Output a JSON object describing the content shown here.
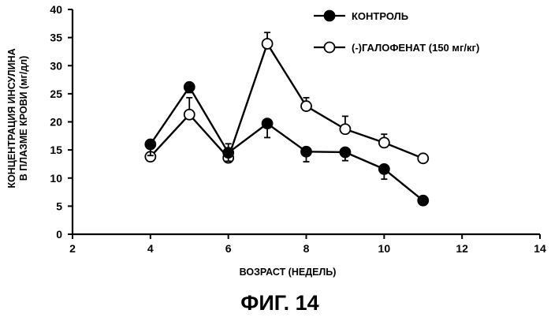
{
  "chart_data": {
    "type": "line",
    "xlabel": "ВОЗРАСТ (НЕДЕЛЬ)",
    "ylabel_lines": [
      "КОНЦЕНТРАЦИЯ ИНСУЛИНА",
      "В ПЛАЗМЕ КРОВИ (мг/дл)"
    ],
    "caption": "ФИГ. 14",
    "xlim": [
      2,
      14
    ],
    "ylim": [
      0,
      40
    ],
    "x_ticks": [
      "2",
      "4",
      "6",
      "8",
      "10",
      "12",
      "14"
    ],
    "y_ticks": [
      "0",
      "5",
      "10",
      "15",
      "20",
      "25",
      "30",
      "35",
      "40"
    ],
    "grid": false,
    "legend_position": "top-right",
    "series": [
      {
        "name": "КОНТРОЛЬ",
        "marker": "filled-circle",
        "color": "#000000",
        "x": [
          4,
          5,
          6,
          7,
          8,
          9,
          10,
          11
        ],
        "y": [
          16,
          26.2,
          14.5,
          19.7,
          14.7,
          14.6,
          11.6,
          6
        ],
        "error": [
          2,
          1,
          1.5,
          2.5,
          1.8,
          1.5,
          1.8,
          0
        ]
      },
      {
        "name": "(-)ГАЛОФЕНАТ (150 мг/кг)",
        "marker": "open-circle",
        "color": "#000000",
        "x": [
          4,
          5,
          6,
          7,
          8,
          9,
          10,
          11
        ],
        "y": [
          13.8,
          21.3,
          13.6,
          33.9,
          22.8,
          18.7,
          16.3,
          13.5
        ],
        "error": [
          0,
          3,
          2.5,
          2,
          1.5,
          2.3,
          1.5,
          0
        ]
      }
    ]
  }
}
